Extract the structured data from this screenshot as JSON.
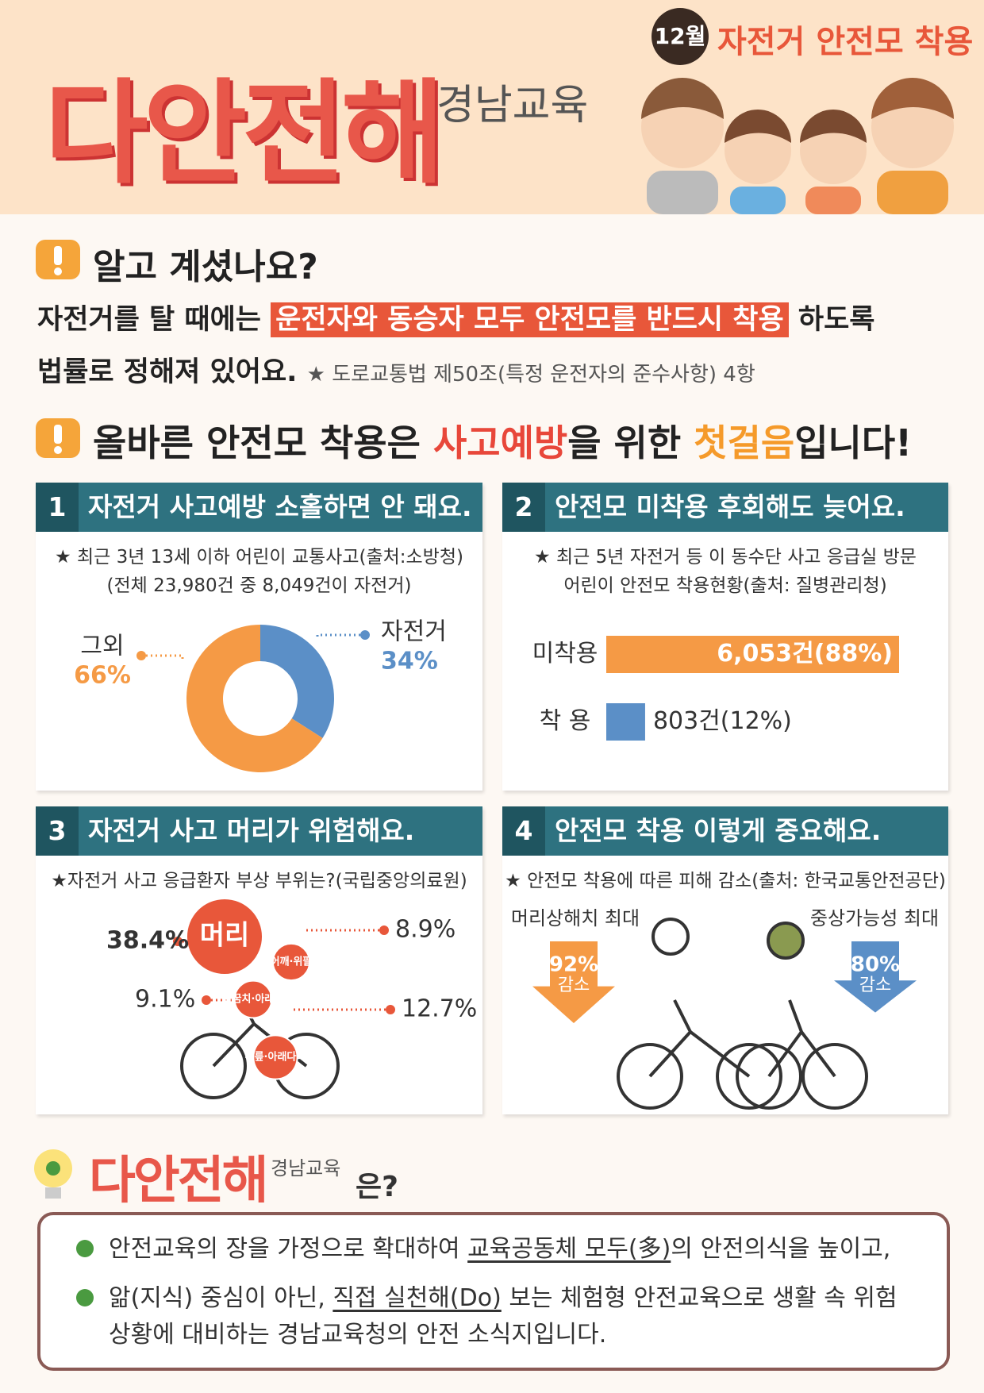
{
  "header": {
    "badge": "12월",
    "topic": "자전거 안전모 착용",
    "logo": "다안전해",
    "logo_sub": "경남교육"
  },
  "notice": {
    "heading": "알고 계셨나요?",
    "text_before": "자전거를 탈 때에는",
    "highlight": "운전자와 동승자 모두 안전모를 반드시 착용",
    "text_after": "하도록",
    "text_line2": "법률로 정해져 있어요.",
    "source": "★ 도로교통법 제50조(특정 운전자의 준수사항) 4항"
  },
  "slogan": {
    "before": "올바른 안전모 착용은",
    "red": "사고예방",
    "mid": "을 위한",
    "orange": "첫걸음",
    "after": "입니다!"
  },
  "panels": [
    {
      "number": "1",
      "title": "자전거 사고예방 소홀하면 안 돼요.",
      "notes": [
        "★ 최근 3년 13세 이하 어린이 교통사고(출처:소방청)",
        "(전체 23,980건 중 8,049건이 자전거)"
      ],
      "chart": {
        "type": "pie",
        "categories": [
          "그외",
          "자전거"
        ],
        "values": [
          66,
          34
        ],
        "value_labels": [
          "66%",
          "34%"
        ],
        "colors": [
          "#f59a45",
          "#5b8fc7"
        ]
      }
    },
    {
      "number": "2",
      "title": "안전모 미착용 후회해도 늦어요.",
      "notes": [
        "★ 최근 5년 자전거 등 이 동수단 사고 응급실 방문",
        "어린이 안전모 착용현황(출처: 질병관리청)"
      ],
      "chart": {
        "type": "bar",
        "categories": [
          "미착용",
          "착 용"
        ],
        "values": [
          6053,
          803
        ],
        "value_labels": [
          "6,053건(88%)",
          "803건(12%)"
        ],
        "colors": [
          "#f59a45",
          "#5b8fc7"
        ]
      }
    },
    {
      "number": "3",
      "title": "자전거 사고 머리가 위험해요.",
      "notes": [
        "★자전거 사고 응급환자 부상 부위는?(국립중앙의료원)"
      ],
      "chart": {
        "type": "bubble",
        "categories": [
          "머리",
          "어깨·위팔",
          "팔꿈치·아래팔",
          "무릎·아래다리"
        ],
        "values": [
          38.4,
          8.9,
          9.1,
          12.7
        ],
        "value_labels": [
          "38.4%",
          "8.9%",
          "9.1%",
          "12.7%"
        ],
        "color": "#e8573a"
      }
    },
    {
      "number": "4",
      "title": "안전모 착용 이렇게 중요해요.",
      "notes": [
        "★ 안전모 착용에 따른 피해 감소(출처: 한국교통안전공단)"
      ],
      "chart": {
        "type": "arrow",
        "categories": [
          "머리상해치 최대",
          "중상가능성 최대"
        ],
        "values": [
          92,
          80
        ],
        "value_labels": [
          "92%",
          "80%"
        ],
        "unit_text": "감소",
        "colors": [
          "#f59a45",
          "#5b8fc7"
        ]
      }
    }
  ],
  "footer": {
    "logo": "다안전해",
    "logo_sub": "경남교육",
    "suffix": "은?",
    "bullets": [
      {
        "before": "안전교육의 장을 가정으로 확대하여",
        "underline": "교육공동체 모두(多)",
        "after": "의 안전의식을 높이고,"
      },
      {
        "before": "앎(지식) 중심이 아닌,",
        "underline": "직접 실천해(Do)",
        "after": "보는 체험형 안전교육으로 생활 속 위험상황에 대비하는 경남교육청의 안전 소식지입니다."
      }
    ]
  }
}
